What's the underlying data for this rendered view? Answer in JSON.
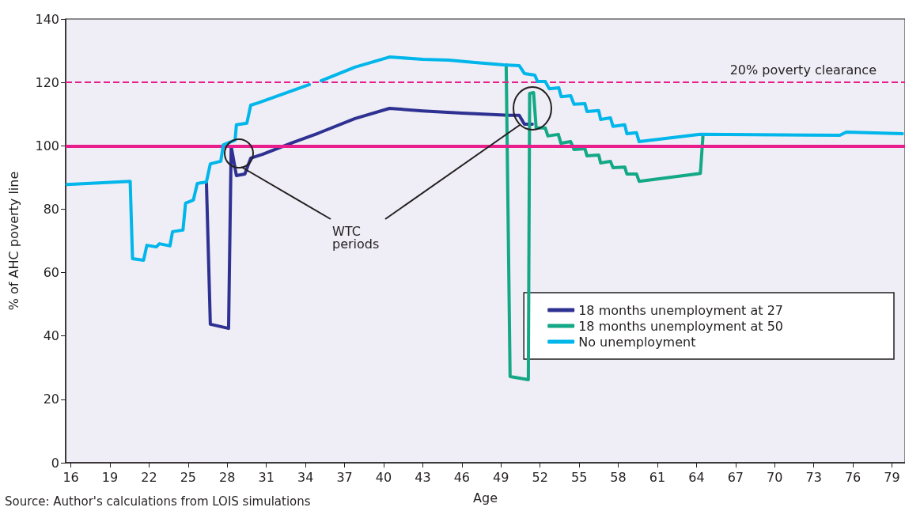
{
  "chart_data": {
    "type": "line",
    "xlabel": "Age",
    "ylabel": "% of AHC poverty line",
    "xlim": [
      15.6,
      80
    ],
    "xticks": [
      16,
      19,
      22,
      25,
      28,
      31,
      34,
      37,
      40,
      43,
      46,
      49,
      52,
      55,
      58,
      61,
      64,
      67,
      70,
      73,
      76,
      79
    ],
    "ylim": [
      0,
      140
    ],
    "yticks": [
      0,
      20,
      40,
      60,
      80,
      100,
      120,
      140
    ],
    "grid": false,
    "legend": "right",
    "marker": "none",
    "line_style": "solid",
    "series": [
      {
        "name": "18 months unemployment at 27",
        "color": "#2e3192",
        "x": [
          26.4,
          26.7,
          28.1,
          28.3,
          28.7,
          29.35,
          29.8,
          30.7,
          33,
          35,
          37.8,
          40.45,
          43,
          46,
          49.6,
          50.4,
          50.8,
          51.4
        ],
        "values": [
          88.6,
          43.7,
          42.4,
          99.8,
          90.6,
          91.1,
          96.1,
          97.3,
          101,
          104,
          108.6,
          111.8,
          111,
          110.3,
          109.6,
          109.6,
          106.8,
          106.8
        ]
      },
      {
        "name": "18 months unemployment at 50",
        "color": "#13a886",
        "x": [
          49.4,
          49.7,
          51.1,
          51.2,
          51.5,
          51.7,
          52.4,
          52.6,
          53.4,
          53.6,
          54.35,
          54.6,
          55.44,
          55.6,
          56.5,
          56.65,
          57.4,
          57.6,
          58.5,
          58.66,
          59.4,
          59.6,
          64.3,
          64.5
        ],
        "values": [
          125.5,
          27.2,
          26.2,
          116.5,
          116.8,
          105.6,
          105.6,
          103.1,
          103.6,
          100.8,
          101.3,
          98.8,
          99.1,
          96.8,
          97.1,
          94.6,
          95.1,
          93.1,
          93.3,
          91.1,
          91.1,
          88.8,
          91.3,
          103.3
        ]
      },
      {
        "name": "No unemployment",
        "color": "#00b6ea",
        "x": [
          15.7,
          20.55,
          20.73,
          21.58,
          21.83,
          22.55,
          22.8,
          23.6,
          23.8,
          24.6,
          24.8,
          25.4,
          25.7,
          26.4,
          26.7,
          27.5,
          27.7,
          28.6,
          28.7,
          29.5,
          29.8,
          30.4,
          34.3,
          34.8,
          35.2,
          37.8,
          40.45,
          43,
          45,
          47,
          49.2,
          50.4,
          50.8,
          51.6,
          51.8,
          52.4,
          52.7,
          53.44,
          53.62,
          54.35,
          54.6,
          55.44,
          55.6,
          56.5,
          56.65,
          57.4,
          57.6,
          58.5,
          58.66,
          59.4,
          59.6,
          64.3,
          75,
          75.5,
          79.8
        ],
        "values": [
          87.8,
          88.8,
          64.4,
          63.9,
          68.6,
          68.1,
          69.1,
          68.4,
          72.9,
          73.4,
          81.9,
          82.9,
          88.1,
          88.6,
          94.3,
          95.1,
          100.3,
          101.8,
          106.6,
          107.1,
          112.8,
          113.6,
          119.3,
          null,
          120.5,
          124.8,
          128,
          127.3,
          127,
          126.3,
          125.5,
          125.3,
          122.8,
          122.3,
          120.3,
          120.3,
          118,
          118.3,
          115.5,
          115.8,
          113.1,
          113.3,
          110.8,
          111.1,
          108.3,
          108.8,
          106.1,
          106.6,
          103.8,
          104.1,
          101.3,
          103.6,
          103.3,
          104.3,
          103.8
        ]
      }
    ],
    "ref_lines": [
      {
        "axis": "y",
        "value": 100,
        "label": null,
        "color": "#e91e8c",
        "line_style": "solid"
      },
      {
        "axis": "y",
        "value": 120,
        "label": "20% poverty clearance",
        "color": "#e91e8c",
        "line_style": "dashed"
      }
    ],
    "annotations": [
      "WTC periods",
      "Source: Author's calculations from LOIS simulations"
    ]
  }
}
